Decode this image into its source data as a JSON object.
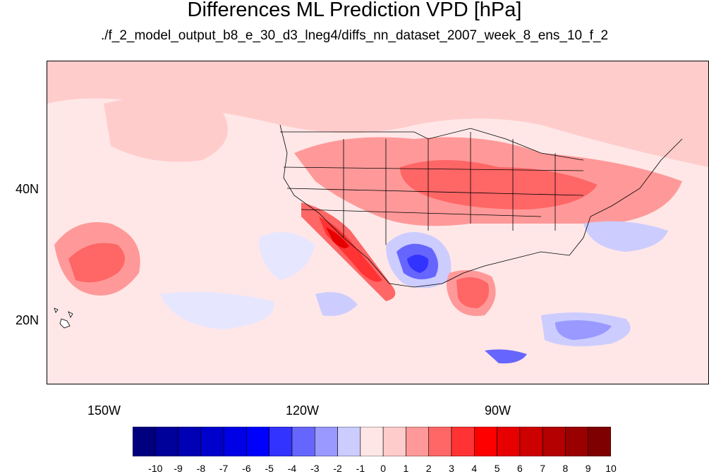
{
  "title": "Differences ML Prediction VPD [hPa]",
  "subtitle": "./f_2_model_output_b8_e_30_d3_lneg4/diffs_nn_dataset_2007_week_8_ens_10_f_2",
  "axes": {
    "y_labels": [
      "40N",
      "20N"
    ],
    "x_labels": [
      "150W",
      "120W",
      "90W"
    ]
  },
  "colorbar": {
    "labels": [
      "-10",
      "-9",
      "-8",
      "-7",
      "-6",
      "-5",
      "-4",
      "-3",
      "-2",
      "-1",
      "0",
      "1",
      "2",
      "3",
      "4",
      "5",
      "6",
      "7",
      "8",
      "9",
      "10"
    ],
    "colors": [
      "#00007f",
      "#00009a",
      "#0000b4",
      "#0000cd",
      "#0000e6",
      "#0000ff",
      "#3333ff",
      "#6666ff",
      "#9999ff",
      "#ccccff",
      "#ffe6e6",
      "#ffcccc",
      "#ff9999",
      "#ff6666",
      "#ff3333",
      "#ff0000",
      "#e60000",
      "#cd0000",
      "#b40000",
      "#9a0000",
      "#7f0000"
    ]
  }
}
